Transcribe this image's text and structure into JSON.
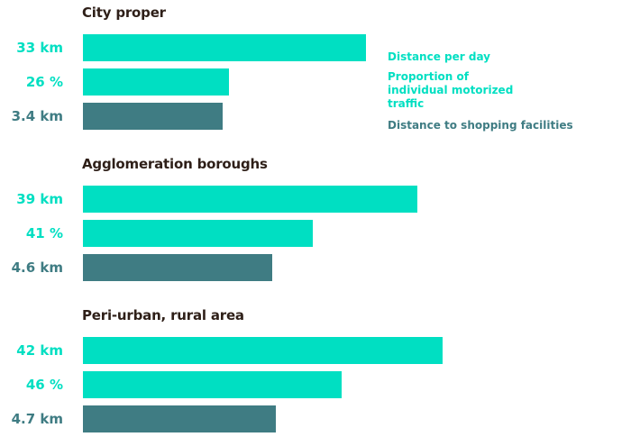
{
  "colors": {
    "primary": "#00dfc2",
    "secondary": "#3f7c83",
    "title": "#2e1f18"
  },
  "legend": [
    {
      "label": "Distance per day",
      "color": "#00dfc2"
    },
    {
      "label": "Proportion of individual motorized traffic",
      "color": "#00dfc2"
    },
    {
      "label": "Distance to shopping facilities",
      "color": "#3f7c83"
    }
  ],
  "chart_data": {
    "type": "bar",
    "orientation": "horizontal",
    "series_names": [
      "Distance per day",
      "Proportion of individual motorized traffic",
      "Distance to shopping facilities"
    ],
    "groups": [
      {
        "title": "City proper",
        "bars": [
          {
            "label": "33 km",
            "value": 33,
            "unit": "km",
            "series": 0
          },
          {
            "label": "26 %",
            "value": 26,
            "unit": "%",
            "series": 1
          },
          {
            "label": "3.4 km",
            "value": 3.4,
            "unit": "km",
            "series": 2
          }
        ]
      },
      {
        "title": "Agglomeration boroughs",
        "bars": [
          {
            "label": "39 km",
            "value": 39,
            "unit": "km",
            "series": 0
          },
          {
            "label": "41 %",
            "value": 41,
            "unit": "%",
            "series": 1
          },
          {
            "label": "4.6 km",
            "value": 4.6,
            "unit": "km",
            "series": 2
          }
        ]
      },
      {
        "title": "Peri-urban, rural area",
        "bars": [
          {
            "label": "42 km",
            "value": 42,
            "unit": "km",
            "series": 0
          },
          {
            "label": "46 %",
            "value": 46,
            "unit": "%",
            "series": 1
          },
          {
            "label": "4.7 km",
            "value": 4.7,
            "unit": "km",
            "series": 2
          }
        ]
      }
    ]
  }
}
